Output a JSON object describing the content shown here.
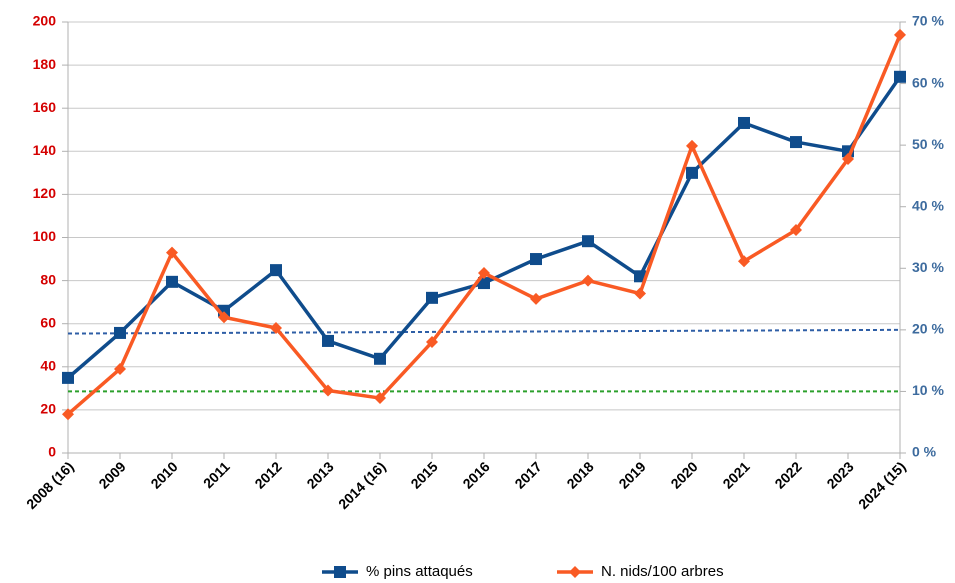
{
  "chart_data": {
    "type": "line",
    "categories": [
      "2008 (16)",
      "2009",
      "2010",
      "2011",
      "2012",
      "2013",
      "2014 (16)",
      "2015",
      "2016",
      "2017",
      "2018",
      "2019",
      "2020",
      "2021",
      "2022",
      "2023",
      "2024 (15)"
    ],
    "series": [
      {
        "name": "% pins attaqués",
        "color": "#0f4c8c",
        "marker": "square",
        "axis": "y2",
        "values": [
          12.2,
          19.5,
          27.8,
          23.1,
          29.7,
          18.2,
          15.3,
          25.2,
          27.6,
          31.5,
          34.4,
          28.7,
          45.5,
          53.6,
          50.5,
          49.0,
          61.1
        ]
      },
      {
        "name": "N. nids/100 arbres",
        "color": "#f95a24",
        "marker": "diamond",
        "axis": "y",
        "values": [
          18,
          39,
          93,
          63,
          58,
          29,
          25.5,
          51.5,
          83.5,
          71.5,
          80,
          74,
          142.5,
          89,
          103.5,
          136.4,
          194
        ]
      }
    ],
    "reference_lines": [
      {
        "color": "#2e5ea6",
        "axis": "y2",
        "values": [
          19.4,
          20.0
        ]
      },
      {
        "color": "#2ca02c",
        "axis": "y2",
        "values": [
          10,
          10
        ]
      }
    ],
    "ylim": [
      0,
      200
    ],
    "yticks": [
      0,
      20,
      40,
      60,
      80,
      100,
      120,
      140,
      160,
      180,
      200
    ],
    "y_tick_color": "#d40000",
    "y2lim": [
      0,
      70
    ],
    "y2ticks": [
      {
        "value": 0,
        "label": "0 %"
      },
      {
        "value": 10,
        "label": "10 %"
      },
      {
        "value": 20,
        "label": "20 %"
      },
      {
        "value": 30,
        "label": "30 %"
      },
      {
        "value": 40,
        "label": "40 %"
      },
      {
        "value": 50,
        "label": "50 %"
      },
      {
        "value": 60,
        "label": "60 %"
      },
      {
        "value": 70,
        "label": "70 %"
      }
    ],
    "y2_tick_color": "#3d6b9e",
    "grid": true,
    "legend": "bottom"
  }
}
